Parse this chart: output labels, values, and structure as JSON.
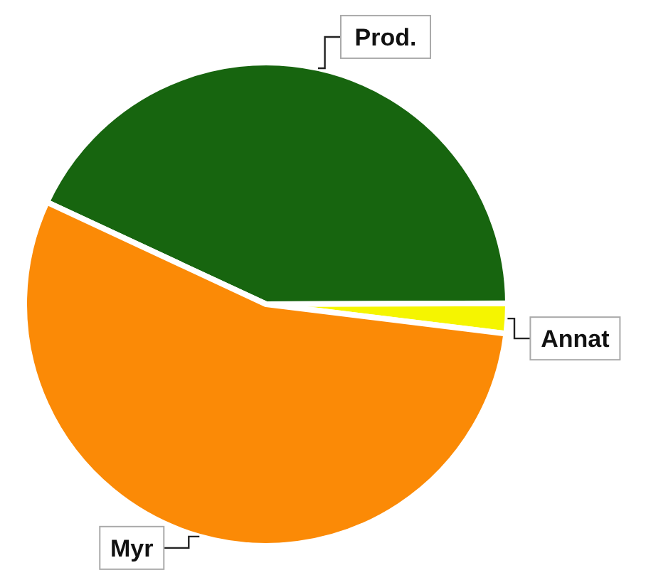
{
  "chart_data": {
    "type": "pie",
    "categories": [
      "Prod.",
      "Annat",
      "Myr"
    ],
    "values": [
      43,
      2,
      55
    ],
    "colors": [
      "#17650f",
      "#f5f500",
      "#fb8a06"
    ]
  }
}
